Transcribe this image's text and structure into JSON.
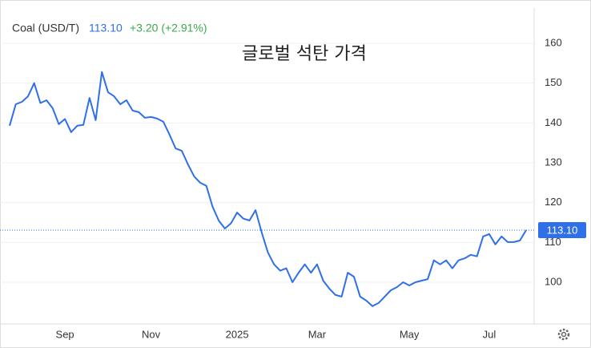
{
  "header": {
    "symbol": "Coal (USD/T)",
    "price": "113.10",
    "change": "+3.20 (+2.91%)"
  },
  "chart_data": {
    "type": "line",
    "title": "글로벌 석탄 가격",
    "categories": [
      null,
      null,
      null,
      null,
      null,
      null,
      null,
      null,
      null,
      "Sep",
      null,
      null,
      null,
      null,
      null,
      null,
      null,
      null,
      null,
      null,
      null,
      null,
      null,
      "Nov",
      null,
      null,
      null,
      null,
      null,
      null,
      null,
      null,
      null,
      null,
      null,
      null,
      null,
      "2025",
      null,
      null,
      null,
      null,
      null,
      null,
      null,
      null,
      null,
      null,
      null,
      null,
      "Mar",
      null,
      null,
      null,
      null,
      null,
      null,
      null,
      null,
      null,
      null,
      null,
      null,
      null,
      null,
      "May",
      null,
      null,
      null,
      null,
      null,
      null,
      null,
      null,
      null,
      null,
      null,
      null,
      "Jul",
      null,
      null,
      null,
      null,
      null,
      null
    ],
    "series": [
      {
        "name": "Coal (USD/T)",
        "color": "#2f6fe8",
        "values": [
          139.3,
          144.7,
          145.3,
          146.7,
          150,
          145,
          145.7,
          143.7,
          139.7,
          141,
          137.7,
          139.3,
          139.5,
          146.3,
          140.7,
          152.8,
          147.7,
          146.7,
          144.7,
          145.7,
          143.1,
          142.7,
          141.3,
          141.5,
          141.1,
          140.3,
          137.1,
          133.6,
          133,
          129.6,
          126.6,
          125,
          124.2,
          119,
          115.5,
          113.5,
          114.8,
          117.5,
          116,
          115.5,
          118.1,
          112.5,
          107.5,
          104.5,
          102.9,
          103.5,
          100,
          102.4,
          104.5,
          102.4,
          104.5,
          100.4,
          98.4,
          96.8,
          96.4,
          102.4,
          101.4,
          96.4,
          95.4,
          94,
          94.8,
          96.4,
          98,
          98.8,
          100,
          99.2,
          100,
          100.4,
          100.8,
          105.5,
          104.5,
          105.5,
          103.5,
          105.5,
          106,
          106.9,
          106.5,
          111.5,
          112.1,
          109.5,
          111.5,
          110.1,
          110.1,
          110.5,
          113.1
        ]
      }
    ],
    "last_value": {
      "value": 113.1,
      "label": "113.10"
    },
    "ylim": [
      90,
      166
    ],
    "yticks": [
      100,
      110,
      120,
      130,
      140,
      150,
      160
    ],
    "grid": true
  }
}
